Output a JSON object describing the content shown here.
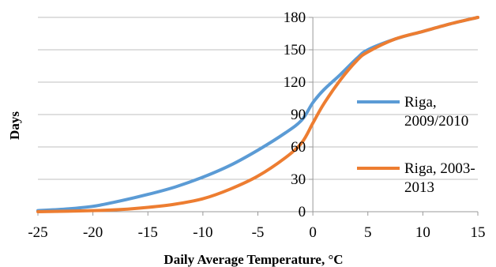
{
  "chart_data": {
    "type": "line",
    "title": "",
    "xlabel": "Daily Average Temperature, °C",
    "ylabel": "Days",
    "xlim": [
      -25,
      15
    ],
    "ylim": [
      0,
      180
    ],
    "x_ticks": [
      -25,
      -20,
      -15,
      -10,
      -5,
      0,
      5,
      10,
      15
    ],
    "y_ticks": [
      0,
      30,
      60,
      90,
      120,
      150,
      180
    ],
    "x_tick_labels": [
      "-25",
      "-20",
      "-15",
      "-10",
      "-5",
      "0",
      "5",
      "10",
      "15"
    ],
    "y_tick_labels": [
      "0",
      "30",
      "60",
      "90",
      "120",
      "150",
      "180"
    ],
    "grid": "horizontal",
    "legend_position": "right",
    "series": [
      {
        "name": "Riga, 2009/2010",
        "legend_lines": [
          "Riga,",
          "2009/2010"
        ],
        "color": "#5b9bd5",
        "points": [
          [
            -25,
            1
          ],
          [
            -22.5,
            2.5
          ],
          [
            -20,
            5
          ],
          [
            -17.5,
            10
          ],
          [
            -15,
            16
          ],
          [
            -12.5,
            23
          ],
          [
            -10,
            32
          ],
          [
            -7.5,
            43
          ],
          [
            -5,
            57
          ],
          [
            -2.5,
            73
          ],
          [
            -1,
            85
          ],
          [
            0,
            101
          ],
          [
            1,
            113
          ],
          [
            2.5,
            127
          ],
          [
            4,
            142
          ],
          [
            5,
            150
          ],
          [
            7.5,
            160
          ],
          [
            10,
            167
          ],
          [
            12.5,
            174
          ],
          [
            15,
            180
          ]
        ]
      },
      {
        "name": "Riga, 2003-2013",
        "legend_lines": [
          "Riga, 2003-",
          "2013"
        ],
        "color": "#ed7d31",
        "points": [
          [
            -25,
            0
          ],
          [
            -20,
            1
          ],
          [
            -17.5,
            2
          ],
          [
            -15,
            4
          ],
          [
            -12.5,
            7
          ],
          [
            -10,
            12
          ],
          [
            -7.5,
            21
          ],
          [
            -5,
            33
          ],
          [
            -2.5,
            50
          ],
          [
            -1,
            64
          ],
          [
            0,
            82
          ],
          [
            1,
            100
          ],
          [
            2.5,
            122
          ],
          [
            4,
            140
          ],
          [
            5,
            148
          ],
          [
            7.5,
            160
          ],
          [
            10,
            167
          ],
          [
            12.5,
            174
          ],
          [
            15,
            180
          ]
        ]
      }
    ]
  }
}
